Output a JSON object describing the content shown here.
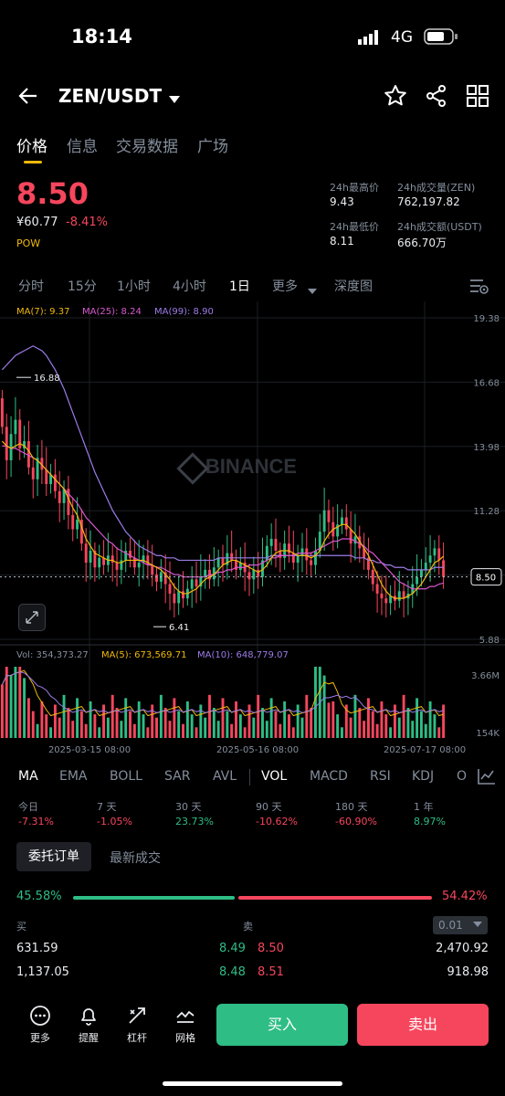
{
  "status_bar": {
    "time": "18:14",
    "network": "4G"
  },
  "header": {
    "pair": "ZEN/USDT",
    "icons": [
      "back-arrow-icon",
      "chevron-down-icon",
      "star-icon",
      "share-icon",
      "grid-icon"
    ]
  },
  "tabs": [
    {
      "label": "价格",
      "active": true
    },
    {
      "label": "信息",
      "active": false
    },
    {
      "label": "交易数据",
      "active": false
    },
    {
      "label": "广场",
      "active": false
    }
  ],
  "price": {
    "last": "8.50",
    "cny": "¥60.77",
    "change": "-8.41%",
    "tag": "POW",
    "high_label": "24h最高价",
    "high": "9.43",
    "low_label": "24h最低价",
    "low": "8.11",
    "vol_base_label": "24h成交量(ZEN)",
    "vol_base": "762,197.82",
    "vol_quote_label": "24h成交额(USDT)",
    "vol_quote": "666.70万"
  },
  "intervals": [
    {
      "label": "分时",
      "active": false
    },
    {
      "label": "15分",
      "active": false
    },
    {
      "label": "1小时",
      "active": false
    },
    {
      "label": "4小时",
      "active": false
    },
    {
      "label": "1日",
      "active": true
    },
    {
      "label": "更多",
      "active": false
    },
    {
      "label": "深度图",
      "active": false
    }
  ],
  "colors": {
    "up": "#2ebd85",
    "down": "#f6465d",
    "accent": "#f0b90b",
    "ma7": "#f0b90b",
    "ma25": "#d857d0",
    "ma99": "#9c7ce8"
  },
  "chart_data": {
    "type": "candlestick",
    "interval": "1日",
    "watermark": "BINANCE",
    "ma_legend": [
      {
        "label": "MA(7): 9.37",
        "color": "#f0b90b"
      },
      {
        "label": "MA(25): 8.24",
        "color": "#d857d0"
      },
      {
        "label": "MA(99): 8.90",
        "color": "#9c7ce8"
      }
    ],
    "y_ticks": [
      "19.38",
      "16.68",
      "13.98",
      "11.28",
      "8.50",
      "5.88"
    ],
    "ylim": [
      5.88,
      19.38
    ],
    "last_price_marker": "8.50",
    "annotations": {
      "high_label": "16.88",
      "low_label": "6.41"
    },
    "x_ticks": [
      "2025-03-15 08:00",
      "2025-05-16 08:00",
      "2025-07-17 08:00"
    ],
    "candles_close": [
      14.8,
      13.4,
      14.5,
      15.1,
      13.9,
      14.2,
      13.1,
      12.6,
      13.5,
      13.0,
      12.4,
      12.8,
      12.1,
      11.6,
      12.2,
      11.1,
      10.5,
      10.9,
      9.9,
      9.1,
      9.6,
      8.9,
      9.3,
      9.0,
      9.4,
      9.1,
      8.8,
      9.2,
      9.6,
      9.3,
      8.9,
      9.1,
      9.4,
      9.0,
      8.6,
      8.3,
      8.7,
      8.2,
      7.8,
      7.4,
      7.9,
      7.6,
      8.0,
      8.4,
      8.1,
      8.5,
      8.8,
      8.4,
      8.9,
      9.3,
      9.0,
      9.5,
      9.2,
      8.8,
      9.1,
      8.7,
      8.4,
      8.8,
      8.5,
      9.2,
      9.8,
      10.1,
      9.6,
      9.3,
      9.9,
      9.5,
      9.1,
      9.4,
      9.7,
      9.2,
      9.0,
      9.6,
      10.4,
      11.3,
      10.8,
      10.2,
      10.7,
      11.0,
      10.5,
      9.9,
      10.2,
      9.7,
      9.3,
      8.8,
      8.2,
      7.8,
      7.6,
      7.4,
      7.7,
      7.5,
      7.9,
      7.6,
      7.8,
      8.2,
      8.5,
      8.8,
      9.1,
      9.4,
      9.7,
      9.2,
      8.5
    ],
    "ma7": [
      14.2,
      14.0,
      13.9,
      14.0,
      14.1,
      14.0,
      13.8,
      13.5,
      13.4,
      13.2,
      13.0,
      12.8,
      12.6,
      12.4,
      12.2,
      11.8,
      11.4,
      11.1,
      10.6,
      10.1,
      9.8,
      9.5,
      9.4,
      9.3,
      9.2,
      9.2,
      9.1,
      9.1,
      9.2,
      9.2,
      9.2,
      9.2,
      9.2,
      9.1,
      9.0,
      8.9,
      8.8,
      8.6,
      8.4,
      8.1,
      7.9,
      7.8,
      7.8,
      7.9,
      8.0,
      8.2,
      8.4,
      8.5,
      8.6,
      8.8,
      9.0,
      9.1,
      9.2,
      9.2,
      9.1,
      9.0,
      8.9,
      8.8,
      8.7,
      8.8,
      9.0,
      9.3,
      9.5,
      9.6,
      9.6,
      9.6,
      9.5,
      9.4,
      9.4,
      9.4,
      9.3,
      9.4,
      9.6,
      10.0,
      10.3,
      10.5,
      10.6,
      10.7,
      10.7,
      10.5,
      10.3,
      10.0,
      9.7,
      9.4,
      9.0,
      8.6,
      8.2,
      7.9,
      7.7,
      7.6,
      7.6,
      7.6,
      7.7,
      7.8,
      8.0,
      8.2,
      8.5,
      8.8,
      9.1,
      9.2,
      9.37
    ],
    "ma25": [
      14.0,
      14.0,
      13.9,
      13.9,
      13.8,
      13.7,
      13.6,
      13.5,
      13.4,
      13.2,
      13.0,
      12.8,
      12.6,
      12.4,
      12.2,
      12.0,
      11.8,
      11.6,
      11.3,
      11.0,
      10.8,
      10.6,
      10.4,
      10.2,
      10.0,
      9.9,
      9.7,
      9.6,
      9.5,
      9.4,
      9.3,
      9.2,
      9.1,
      9.0,
      9.0,
      8.9,
      8.9,
      8.8,
      8.7,
      8.6,
      8.6,
      8.5,
      8.5,
      8.5,
      8.5,
      8.5,
      8.5,
      8.6,
      8.6,
      8.7,
      8.7,
      8.8,
      8.8,
      8.9,
      8.9,
      8.9,
      9.0,
      9.0,
      9.0,
      9.1,
      9.2,
      9.3,
      9.3,
      9.4,
      9.4,
      9.4,
      9.4,
      9.5,
      9.5,
      9.5,
      9.5,
      9.6,
      9.7,
      9.8,
      9.9,
      10.0,
      10.0,
      10.1,
      10.1,
      10.1,
      10.0,
      9.9,
      9.8,
      9.6,
      9.5,
      9.3,
      9.1,
      8.9,
      8.7,
      8.5,
      8.3,
      8.2,
      8.1,
      8.0,
      8.0,
      8.0,
      8.0,
      8.1,
      8.1,
      8.2,
      8.24
    ],
    "ma99": [
      17.2,
      17.4,
      17.6,
      17.8,
      17.9,
      18.0,
      18.1,
      18.2,
      18.1,
      18.0,
      17.8,
      17.5,
      17.2,
      16.8,
      16.4,
      15.9,
      15.4,
      14.9,
      14.4,
      13.9,
      13.4,
      12.9,
      12.5,
      12.1,
      11.7,
      11.3,
      11.0,
      10.7,
      10.4,
      10.2,
      10.0,
      9.8,
      9.7,
      9.6,
      9.5,
      9.4,
      9.4,
      9.3,
      9.3,
      9.3,
      9.2,
      9.2,
      9.2,
      9.2,
      9.2,
      9.2,
      9.2,
      9.2,
      9.2,
      9.3,
      9.3,
      9.3,
      9.3,
      9.3,
      9.3,
      9.3,
      9.3,
      9.3,
      9.3,
      9.3,
      9.3,
      9.4,
      9.4,
      9.4,
      9.4,
      9.4,
      9.4,
      9.4,
      9.4,
      9.4,
      9.4,
      9.4,
      9.4,
      9.4,
      9.4,
      9.4,
      9.4,
      9.4,
      9.4,
      9.4,
      9.3,
      9.3,
      9.3,
      9.2,
      9.2,
      9.1,
      9.1,
      9.0,
      9.0,
      8.9,
      8.9,
      8.9,
      8.8,
      8.8,
      8.8,
      8.8,
      8.8,
      8.8,
      8.9,
      8.9,
      8.9
    ],
    "volume_legend": [
      {
        "label": "Vol: 354,373.27",
        "color": "#848e9c"
      },
      {
        "label": "MA(5): 673,569.71",
        "color": "#f0b90b"
      },
      {
        "label": "MA(10): 648,779.07",
        "color": "#9c7ce8"
      }
    ],
    "volume_ticks": [
      "3.66M",
      "154K"
    ]
  },
  "indicators": [
    {
      "label": "MA",
      "active": true
    },
    {
      "label": "EMA",
      "active": false
    },
    {
      "label": "BOLL",
      "active": false
    },
    {
      "label": "SAR",
      "active": false
    },
    {
      "label": "AVL",
      "active": false
    },
    {
      "label": "VOL",
      "active": true
    },
    {
      "label": "MACD",
      "active": false
    },
    {
      "label": "RSI",
      "active": false
    },
    {
      "label": "KDJ",
      "active": false
    },
    {
      "label": "O",
      "active": false
    }
  ],
  "performance": [
    {
      "label": "今日",
      "value": "-7.31%",
      "up": false
    },
    {
      "label": "7 天",
      "value": "-1.05%",
      "up": false
    },
    {
      "label": "30 天",
      "value": "23.73%",
      "up": true
    },
    {
      "label": "90 天",
      "value": "-10.62%",
      "up": false
    },
    {
      "label": "180 天",
      "value": "-60.90%",
      "up": false
    },
    {
      "label": "1 年",
      "value": "8.97%",
      "up": true
    }
  ],
  "orderbook": {
    "tab_orders": "委托订单",
    "tab_trades": "最新成交",
    "buy_pct": "45.58%",
    "sell_pct": "54.42%",
    "buy_ratio": 0.4558,
    "col_buy": "买",
    "col_sell": "卖",
    "precision": "0.01",
    "rows": [
      {
        "bid_qty": "631.59",
        "bid_price": "8.49",
        "ask_price": "8.50",
        "ask_qty": "2,470.92"
      },
      {
        "bid_qty": "1,137.05",
        "bid_price": "8.48",
        "ask_price": "8.51",
        "ask_qty": "918.98"
      }
    ]
  },
  "bottom_bar": {
    "more": "更多",
    "alert": "提醒",
    "leverage": "杠杆",
    "grid": "网格",
    "buy": "买入",
    "sell": "卖出"
  }
}
